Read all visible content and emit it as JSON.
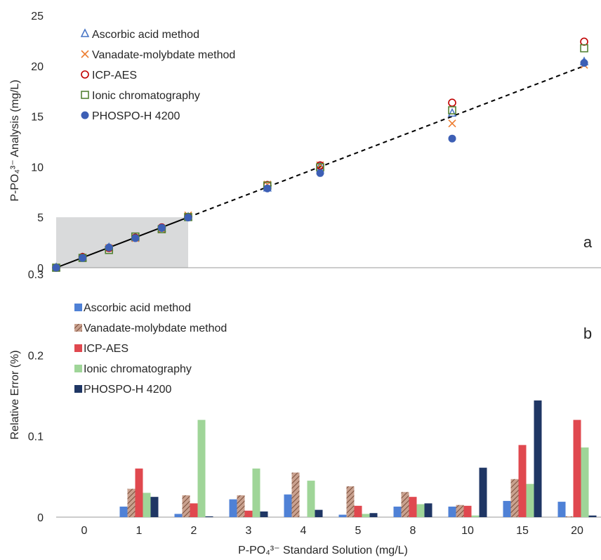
{
  "chart_data": [
    {
      "panel_label": "a",
      "type": "scatter",
      "xlabel": "",
      "ylabel": "P-PO₄³⁻ Analysis (mg/L)",
      "ylim": [
        0,
        25
      ],
      "yticks": [
        "0",
        "5",
        "10",
        "15",
        "20",
        "25"
      ],
      "xlim": [
        0,
        20
      ],
      "x": [
        0,
        1,
        2,
        3,
        4,
        5,
        8,
        10,
        15,
        20
      ],
      "legend_position": "top-left",
      "grid": false,
      "shaded_region": {
        "x": [
          0,
          5
        ],
        "y": [
          0,
          5
        ],
        "color": "#d9dadb"
      },
      "reference_line": {
        "points": [
          [
            0,
            0
          ],
          [
            20,
            20
          ]
        ],
        "solid_until": 5
      },
      "series": [
        {
          "name": "Ascorbic acid method",
          "marker": "triangle-open",
          "color": "#4472c4",
          "values": [
            0,
            0.99,
            1.99,
            2.94,
            3.88,
            5.01,
            7.89,
            10.05,
            15.3,
            20.4
          ]
        },
        {
          "name": "Vanadate-molybdate method",
          "marker": "x",
          "color": "#ed7d31",
          "values": [
            0,
            0.96,
            1.95,
            2.92,
            3.78,
            5.19,
            8.25,
            10.15,
            14.3,
            20.1
          ]
        },
        {
          "name": "ICP-AES",
          "marker": "circle-open",
          "color": "#c00000",
          "values": [
            0,
            1.06,
            1.96,
            2.97,
            3.99,
            5.02,
            8.2,
            10.14,
            16.35,
            22.4
          ]
        },
        {
          "name": "Ionic chromatography",
          "marker": "square-open",
          "color": "#548235",
          "values": [
            0,
            0.97,
            1.76,
            3.09,
            3.82,
            5.02,
            8.13,
            9.95,
            15.6,
            21.75
          ]
        },
        {
          "name": "PHOSPO-H 4200",
          "marker": "circle-filled",
          "color": "#3d5fb5",
          "values": [
            0,
            0.97,
            2.0,
            2.93,
            3.96,
            4.97,
            7.85,
            9.38,
            12.8,
            20.3
          ]
        }
      ]
    },
    {
      "panel_label": "b",
      "type": "bar",
      "xlabel": "P-PO₄³⁻ Standard Solution (mg/L)",
      "ylabel": "Relative Error (%)",
      "ylim": [
        0,
        0.3
      ],
      "yticks": [
        "0",
        "0.1",
        "0.2",
        "0.3"
      ],
      "categories": [
        "0",
        "1",
        "2",
        "3",
        "4",
        "5",
        "8",
        "10",
        "15",
        "20"
      ],
      "legend_position": "top-left",
      "grid": false,
      "series": [
        {
          "name": "Ascorbic acid method",
          "color": "#4f81d6",
          "hatched": false,
          "values": [
            0,
            0.013,
            0.004,
            0.022,
            0.028,
            0.003,
            0.013,
            0.013,
            0.02,
            0.019
          ]
        },
        {
          "name": "Vanadate-molybdate method",
          "color": "#c9a18f",
          "hatched": true,
          "values": [
            0,
            0.035,
            0.027,
            0.027,
            0.055,
            0.038,
            0.031,
            0.015,
            0.047,
            0.001
          ]
        },
        {
          "name": "ICP-AES",
          "color": "#e0484f",
          "hatched": false,
          "values": [
            0,
            0.06,
            0.017,
            0.008,
            0.0,
            0.014,
            0.025,
            0.014,
            0.089,
            0.12
          ]
        },
        {
          "name": "Ionic chromatography",
          "color": "#9fd598",
          "hatched": false,
          "values": [
            0,
            0.03,
            0.12,
            0.06,
            0.045,
            0.004,
            0.016,
            0.002,
            0.041,
            0.086
          ]
        },
        {
          "name": "PHOSPO-H 4200",
          "color": "#1f3664",
          "hatched": false,
          "values": [
            0,
            0.025,
            0.001,
            0.007,
            0.009,
            0.005,
            0.017,
            0.061,
            0.144,
            0.002
          ]
        }
      ]
    }
  ]
}
